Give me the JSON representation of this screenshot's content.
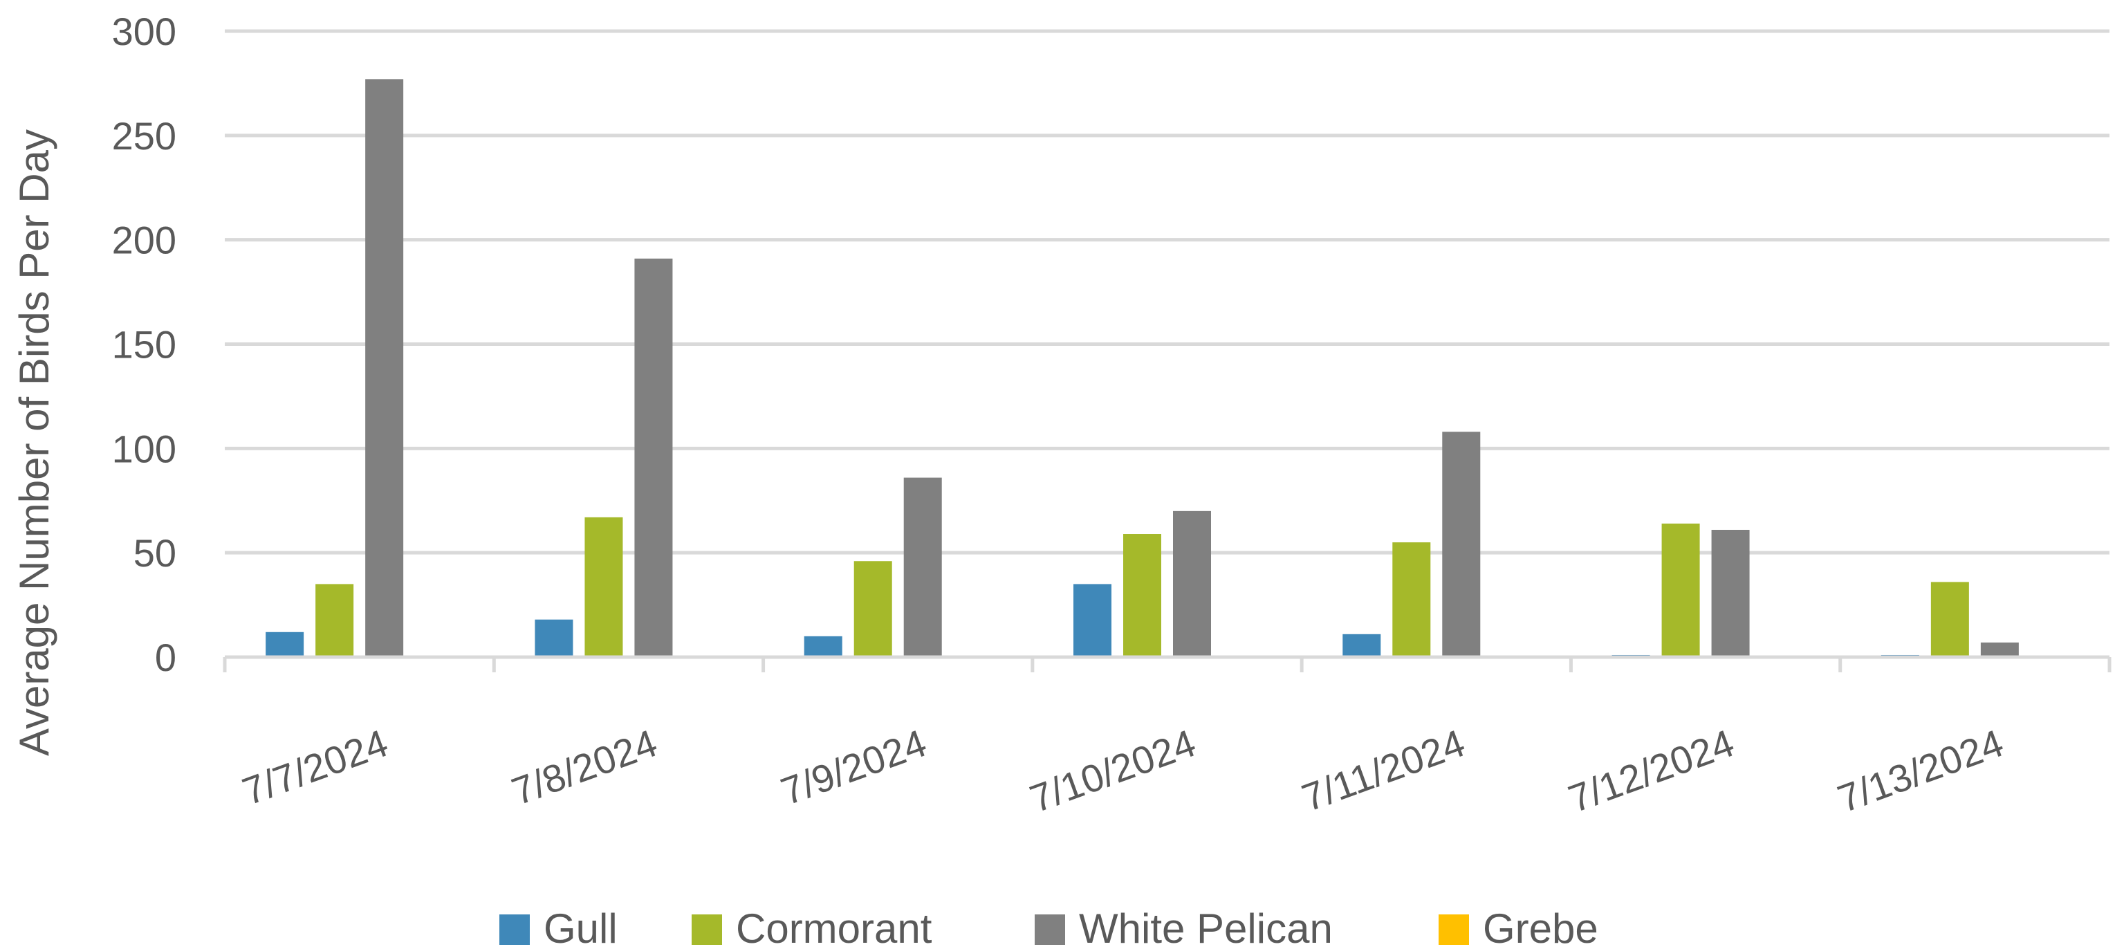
{
  "chart_data": {
    "type": "bar",
    "title": "",
    "xlabel": "",
    "ylabel": "Average Number of Birds Per Day",
    "ylim": [
      0,
      300
    ],
    "yticks": [
      0,
      50,
      100,
      150,
      200,
      250,
      300
    ],
    "grid": true,
    "legend_position": "bottom",
    "categories": [
      "7/7/2024",
      "7/8/2024",
      "7/9/2024",
      "7/10/2024",
      "7/11/2024",
      "7/12/2024",
      "7/13/2024"
    ],
    "series": [
      {
        "name": "Gull",
        "color": "#3f88b9",
        "values": [
          12,
          18,
          10,
          35,
          11,
          1,
          1
        ]
      },
      {
        "name": "Cormorant",
        "color": "#a5b92a",
        "values": [
          35,
          67,
          46,
          59,
          55,
          64,
          36
        ]
      },
      {
        "name": "White Pelican",
        "color": "#808080",
        "values": [
          277,
          191,
          86,
          70,
          108,
          61,
          7
        ]
      },
      {
        "name": "Grebe",
        "color": "#ffc000",
        "values": [
          0,
          0,
          0,
          0,
          0,
          0,
          0
        ]
      }
    ]
  }
}
